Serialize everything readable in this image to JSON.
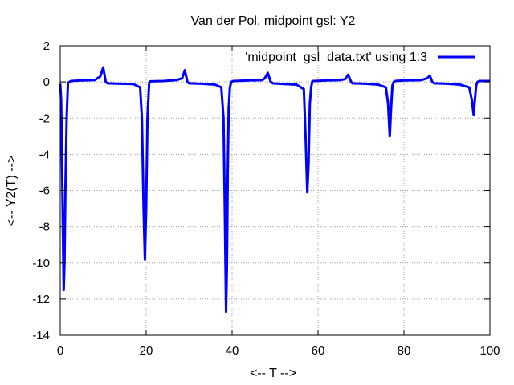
{
  "chart_data": {
    "type": "line",
    "title": "Van der Pol, midpoint gsl: Y2",
    "xlabel": "<-- T -->",
    "ylabel": "<-- Y2(T) -->",
    "xlim": [
      0,
      100
    ],
    "ylim": [
      -14,
      2
    ],
    "xticks": [
      0,
      20,
      40,
      60,
      80,
      100
    ],
    "yticks": [
      2,
      0,
      -2,
      -4,
      -6,
      -8,
      -10,
      -12,
      -14
    ],
    "grid": true,
    "legend_position": "top-right",
    "series": [
      {
        "name": "'midpoint_gsl_data.txt' using 1:3",
        "color": "#0000ff",
        "x": [
          0,
          0.2,
          0.5,
          0.8,
          1.0,
          1.2,
          1.5,
          1.8,
          2.5,
          5,
          8,
          9.3,
          10.0,
          10.6,
          11,
          14,
          17,
          18.6,
          19.0,
          19.4,
          19.7,
          20.0,
          20.3,
          20.7,
          21,
          24,
          27,
          28.4,
          29.0,
          29.6,
          30,
          33,
          36,
          37.5,
          38.0,
          38.3,
          38.6,
          38.8,
          39.0,
          39.2,
          39.5,
          39.8,
          40.3,
          44,
          47,
          47.6,
          48.3,
          49.0,
          49.5,
          52,
          55,
          56.7,
          57.1,
          57.5,
          57.8,
          58.1,
          58.4,
          58.7,
          59.2,
          62,
          65,
          66.3,
          67.0,
          67.7,
          68,
          71,
          74,
          75.8,
          76.3,
          76.7,
          77.0,
          77.3,
          77.6,
          78,
          80,
          84,
          85.4,
          86.0,
          86.6,
          87,
          90,
          93,
          95.2,
          95.8,
          96.2,
          96.5,
          96.8,
          97.1,
          97.6,
          98.5,
          100
        ],
        "y": [
          -0.1,
          -1.0,
          -6.0,
          -11.5,
          -10.0,
          -6.0,
          -2.0,
          -0.05,
          0.05,
          0.08,
          0.1,
          0.3,
          0.8,
          0.0,
          -0.08,
          -0.1,
          -0.12,
          -0.3,
          -2.0,
          -7.0,
          -9.8,
          -7.0,
          -2.0,
          -0.05,
          0.03,
          0.05,
          0.1,
          0.2,
          0.65,
          0.0,
          -0.08,
          -0.1,
          -0.15,
          -0.3,
          -2.0,
          -7.0,
          -12.7,
          -10.0,
          -5.0,
          -1.5,
          -0.3,
          0.0,
          0.05,
          0.08,
          0.1,
          0.2,
          0.5,
          0.0,
          -0.08,
          -0.12,
          -0.15,
          -0.4,
          -3.0,
          -6.1,
          -4.5,
          -1.2,
          -0.3,
          0.05,
          0.05,
          0.08,
          0.1,
          0.15,
          0.4,
          0.0,
          -0.08,
          -0.1,
          -0.15,
          -0.3,
          -1.2,
          -3.0,
          -1.5,
          -0.2,
          0.0,
          0.05,
          0.08,
          0.1,
          0.2,
          0.35,
          0.0,
          -0.08,
          -0.1,
          -0.15,
          -0.3,
          -1.0,
          -1.8,
          -1.0,
          -0.2,
          0.0,
          0.05,
          0.05,
          0.05
        ]
      }
    ]
  }
}
